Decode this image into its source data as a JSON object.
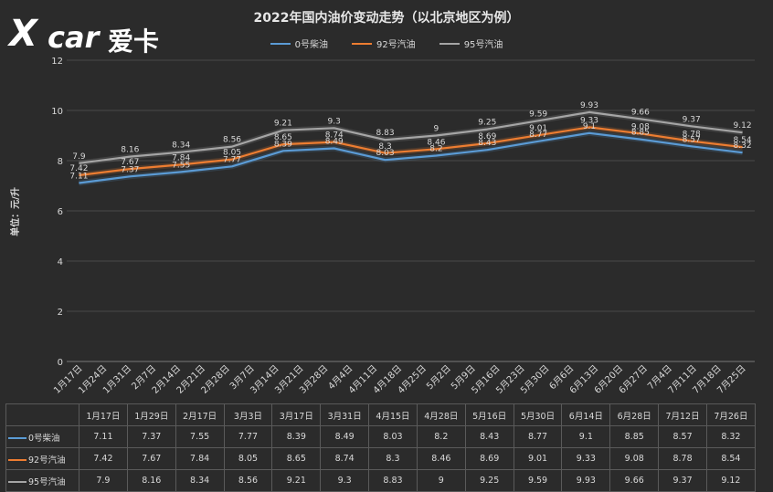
{
  "logo": {
    "x": "X",
    "car": "car",
    "text": "爱卡"
  },
  "chart_data": {
    "type": "line",
    "title": "2022年国内油价变动走势（以北京地区为例）",
    "ylabel": "单位：元/升",
    "ylim": [
      0,
      12
    ],
    "yticks": [
      0,
      2,
      4,
      6,
      8,
      10,
      12
    ],
    "grid": true,
    "legend_position": "top",
    "x_axis_labels": [
      "1月17日",
      "1月24日",
      "1月31日",
      "2月7日",
      "2月14日",
      "2月21日",
      "2月28日",
      "3月7日",
      "3月14日",
      "3月21日",
      "3月28日",
      "4月4日",
      "4月11日",
      "4月18日",
      "4月25日",
      "5月2日",
      "5月9日",
      "5月16日",
      "5月23日",
      "5月30日",
      "6月6日",
      "6月13日",
      "6月20日",
      "6月27日",
      "7月4日",
      "7月11日",
      "7月18日",
      "7月25日"
    ],
    "categories": [
      "1月17日",
      "1月29日",
      "2月17日",
      "3月3日",
      "3月17日",
      "3月31日",
      "4月15日",
      "4月28日",
      "5月16日",
      "5月30日",
      "6月14日",
      "6月28日",
      "7月12日",
      "7月26日"
    ],
    "series": [
      {
        "name": "0号柴油",
        "color": "#5b9bd5",
        "values": [
          7.11,
          7.37,
          7.55,
          7.77,
          8.39,
          8.49,
          8.03,
          8.2,
          8.43,
          8.77,
          9.1,
          8.85,
          8.57,
          8.32
        ]
      },
      {
        "name": "92号汽油",
        "color": "#ed7d31",
        "values": [
          7.42,
          7.67,
          7.84,
          8.05,
          8.65,
          8.74,
          8.3,
          8.46,
          8.69,
          9.01,
          9.33,
          9.08,
          8.78,
          8.54
        ]
      },
      {
        "name": "95号汽油",
        "color": "#a5a5a5",
        "values": [
          7.9,
          8.16,
          8.34,
          8.56,
          9.21,
          9.3,
          8.83,
          9,
          9.25,
          9.59,
          9.93,
          9.66,
          9.37,
          9.12
        ]
      }
    ]
  }
}
